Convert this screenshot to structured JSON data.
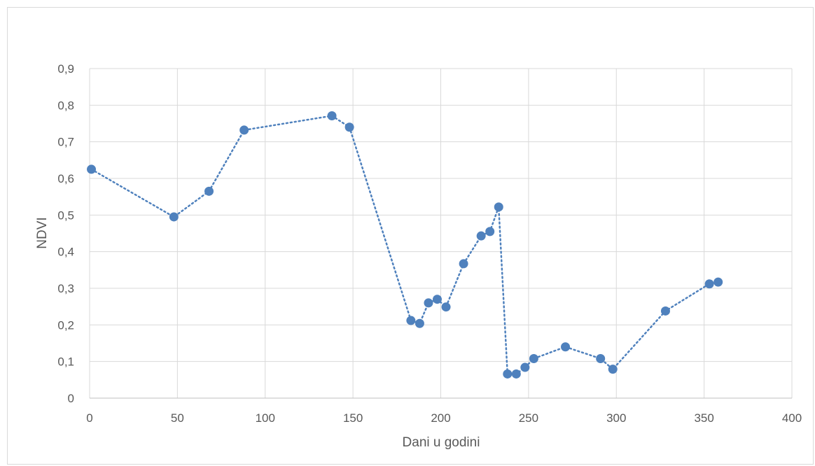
{
  "chart_data": {
    "type": "scatter",
    "title": "",
    "xlabel": "Dani u godini",
    "ylabel": "NDVI",
    "xlim": [
      0,
      400
    ],
    "ylim": [
      0,
      0.9
    ],
    "x_ticks": [
      "0",
      "50",
      "100",
      "150",
      "200",
      "250",
      "300",
      "350",
      "400"
    ],
    "y_ticks": [
      "0",
      "0,1",
      "0,2",
      "0,3",
      "0,4",
      "0,5",
      "0,6",
      "0,7",
      "0,8",
      "0,9"
    ],
    "grid": true,
    "line_style": "dotted",
    "color": "#4f81bd",
    "series": [
      {
        "x": [
          1,
          48,
          68,
          88,
          138,
          148,
          183,
          188,
          193,
          198,
          203,
          213,
          223,
          228,
          233,
          238,
          243,
          248,
          253,
          271,
          291,
          298,
          328,
          353,
          358
        ],
        "y": [
          0.625,
          0.495,
          0.565,
          0.732,
          0.771,
          0.74,
          0.212,
          0.204,
          0.26,
          0.27,
          0.249,
          0.367,
          0.443,
          0.455,
          0.522,
          0.066,
          0.066,
          0.084,
          0.108,
          0.14,
          0.108,
          0.079,
          0.238,
          0.312,
          0.317
        ]
      }
    ]
  }
}
